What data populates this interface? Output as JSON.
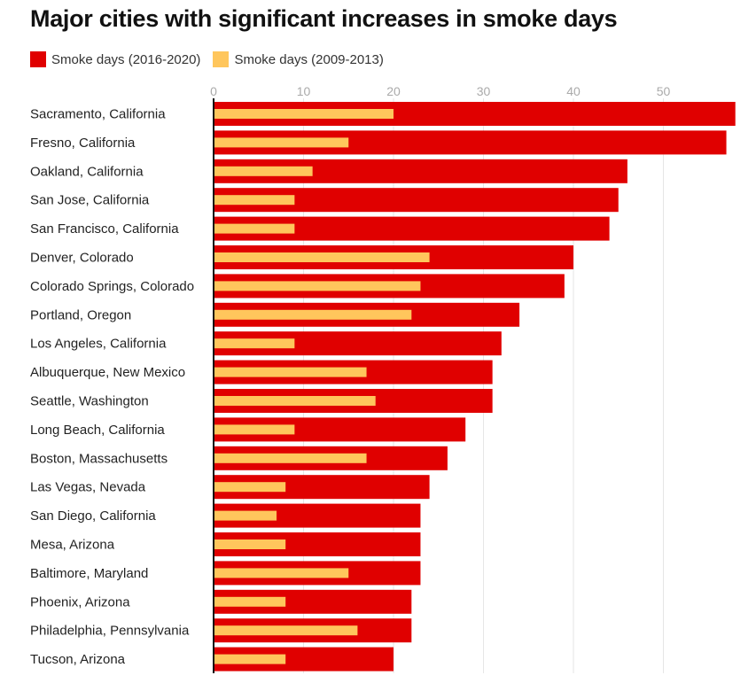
{
  "chart_data": {
    "type": "bar",
    "orientation": "horizontal",
    "title": "Major cities with significant increases in smoke days",
    "xlim": [
      0,
      58
    ],
    "x_ticks": [
      0,
      10,
      20,
      30,
      40,
      50
    ],
    "grid": true,
    "legend_position": "top-left",
    "categories": [
      "Sacramento, California",
      "Fresno, California",
      "Oakland, California",
      "San Jose, California",
      "San Francisco, California",
      "Denver, Colorado",
      "Colorado Springs, Colorado",
      "Portland, Oregon",
      "Los Angeles, California",
      "Albuquerque, New Mexico",
      "Seattle, Washington",
      "Long Beach, California",
      "Boston, Massachusetts",
      "Las Vegas, Nevada",
      "San Diego, California",
      "Mesa, Arizona",
      "Baltimore, Maryland",
      "Phoenix, Arizona",
      "Philadelphia, Pennsylvania",
      "Tucson, Arizona"
    ],
    "series": [
      {
        "name": "Smoke days (2016-2020)",
        "color": "#e00000",
        "values": [
          58,
          57,
          46,
          45,
          44,
          40,
          39,
          34,
          32,
          31,
          31,
          28,
          26,
          24,
          23,
          23,
          23,
          22,
          22,
          20
        ]
      },
      {
        "name": "Smoke days (2009-2013)",
        "color": "#ffc65c",
        "values": [
          20,
          15,
          11,
          9,
          9,
          24,
          23,
          22,
          9,
          17,
          18,
          9,
          17,
          8,
          7,
          8,
          15,
          8,
          16,
          8
        ]
      }
    ]
  }
}
